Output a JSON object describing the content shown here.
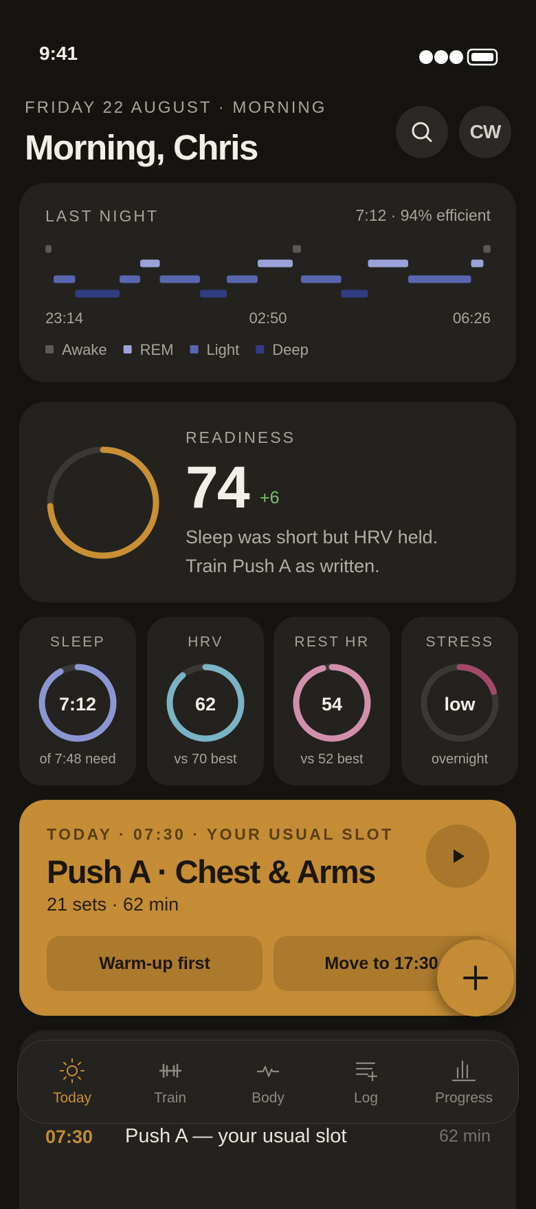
{
  "status": {
    "time": "9:41"
  },
  "header": {
    "date": "FRIDAY 22 AUGUST · MORNING",
    "title": "Morning, Chris",
    "avatar": "CW"
  },
  "sleep": {
    "label": "LAST NIGHT",
    "summary": "7:12 · 94% efficient",
    "times": [
      "23:14",
      "02:50",
      "06:26"
    ],
    "xlim": [
      0,
      432
    ],
    "legend": [
      {
        "name": "Awake",
        "color": "#5b5a57"
      },
      {
        "name": "REM",
        "color": "#9ba3d8"
      },
      {
        "name": "Light",
        "color": "#5a66b0"
      },
      {
        "name": "Deep",
        "color": "#323c84"
      }
    ],
    "segments": [
      {
        "stage": 0,
        "start": 0,
        "end": 6
      },
      {
        "stage": 2,
        "start": 8,
        "end": 29
      },
      {
        "stage": 3,
        "start": 29,
        "end": 72
      },
      {
        "stage": 2,
        "start": 72,
        "end": 92
      },
      {
        "stage": 1,
        "start": 92,
        "end": 111
      },
      {
        "stage": 2,
        "start": 111,
        "end": 150
      },
      {
        "stage": 3,
        "start": 150,
        "end": 176
      },
      {
        "stage": 2,
        "start": 176,
        "end": 206
      },
      {
        "stage": 1,
        "start": 206,
        "end": 240
      },
      {
        "stage": 0,
        "start": 240,
        "end": 248
      },
      {
        "stage": 2,
        "start": 248,
        "end": 287
      },
      {
        "stage": 3,
        "start": 287,
        "end": 313
      },
      {
        "stage": 1,
        "start": 313,
        "end": 352
      },
      {
        "stage": 2,
        "start": 352,
        "end": 413
      },
      {
        "stage": 1,
        "start": 413,
        "end": 425
      },
      {
        "stage": 0,
        "start": 425,
        "end": 432
      }
    ]
  },
  "readiness": {
    "label": "READINESS",
    "score": 74,
    "max": 100,
    "delta": "+6",
    "color": "#c98f34",
    "text": [
      "Sleep was short but HRV held.",
      "Train Push A as written."
    ]
  },
  "metrics": [
    {
      "label": "SLEEP",
      "value": "7:12",
      "note": "of 7:48 need",
      "fill": 92,
      "color": "#8e96d2"
    },
    {
      "label": "HRV",
      "value": 62,
      "note": "vs 70 best",
      "fill": 89,
      "color": "#7ab3c4"
    },
    {
      "label": "REST HR",
      "value": 54,
      "note": "vs 52 best",
      "fill": 96,
      "color": "#d28fac"
    },
    {
      "label": "STRESS",
      "value": "low",
      "note": "overnight",
      "fill": 20,
      "color": "#a5496a"
    }
  ],
  "workout": {
    "eyebrow": "TODAY · 07:30 · YOUR USUAL SLOT",
    "title": "Push A · Chest & Arms",
    "meta": "21 sets · 62 min",
    "buttons": [
      "Warm-up first",
      "Move to 17:30"
    ]
  },
  "upcoming": {
    "time": "07:30",
    "title": "Push A — your usual slot",
    "duration": "62 min"
  },
  "tabs": [
    {
      "label": "Today",
      "active": true
    },
    {
      "label": "Train",
      "active": false
    },
    {
      "label": "Body",
      "active": false
    },
    {
      "label": "Log",
      "active": false
    },
    {
      "label": "Progress",
      "active": false
    }
  ]
}
